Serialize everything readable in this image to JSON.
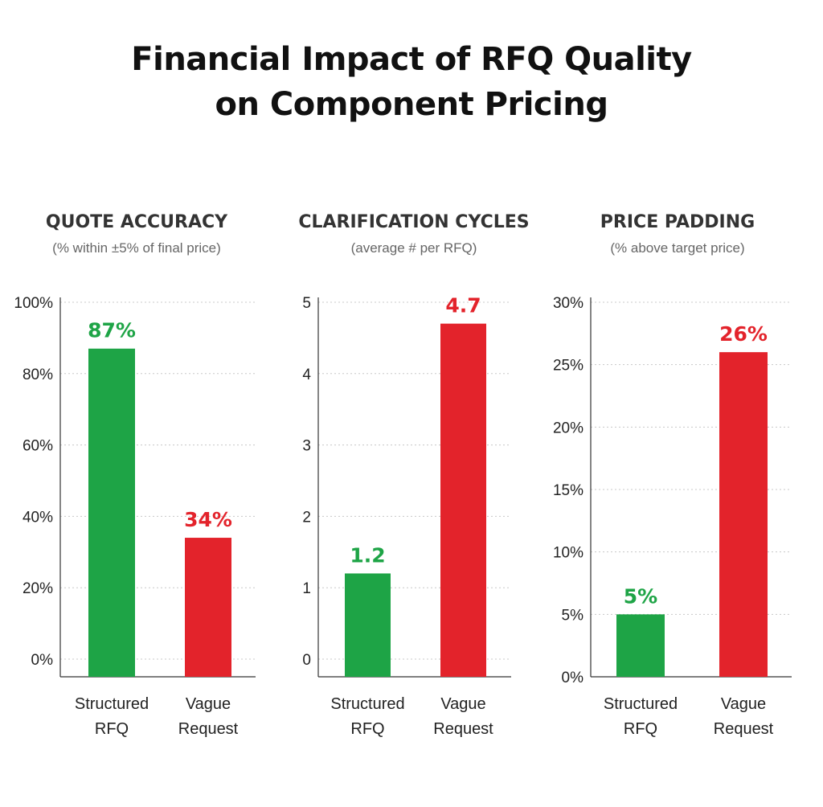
{
  "title": {
    "line1": "Financial Impact of RFQ Quality",
    "line2": "on Component Pricing"
  },
  "colors": {
    "structured": "#1ea446",
    "vague": "#e3232b"
  },
  "chart_data": [
    {
      "type": "bar",
      "title": "QUOTE ACCURACY",
      "subtitle": "(% within ±5% of final price)",
      "categories": [
        [
          "Structured",
          "RFQ"
        ],
        [
          "Vague",
          "Request"
        ]
      ],
      "values": [
        87,
        34
      ],
      "data_labels": [
        "87%",
        "34%"
      ],
      "ylim": [
        0,
        100
      ],
      "yticks": [
        0,
        20,
        40,
        60,
        80,
        100
      ],
      "ytick_labels": [
        "0%",
        "20%",
        "40%",
        "60%",
        "80%",
        "100%"
      ],
      "grid": true
    },
    {
      "type": "bar",
      "title": "CLARIFICATION CYCLES",
      "subtitle": "(average # per RFQ)",
      "categories": [
        [
          "Structured",
          "RFQ"
        ],
        [
          "Vague",
          "Request"
        ]
      ],
      "values": [
        1.2,
        4.7
      ],
      "data_labels": [
        "1.2",
        "4.7"
      ],
      "ylim": [
        0,
        5
      ],
      "yticks": [
        0,
        1,
        2,
        3,
        4,
        5
      ],
      "ytick_labels": [
        "0",
        "1",
        "2",
        "3",
        "4",
        "5"
      ],
      "grid": true
    },
    {
      "type": "bar",
      "title": "PRICE PADDING",
      "subtitle": "(% above target price)",
      "categories": [
        [
          "Structured",
          "RFQ"
        ],
        [
          "Vague",
          "Request"
        ]
      ],
      "values": [
        5,
        26
      ],
      "data_labels": [
        "5%",
        "26%"
      ],
      "ylim": [
        0,
        30
      ],
      "yticks": [
        0,
        5,
        10,
        15,
        20,
        25,
        30
      ],
      "ytick_labels": [
        "0%",
        "5%",
        "10%",
        "15%",
        "20%",
        "25%",
        "30%"
      ],
      "grid": true
    }
  ]
}
